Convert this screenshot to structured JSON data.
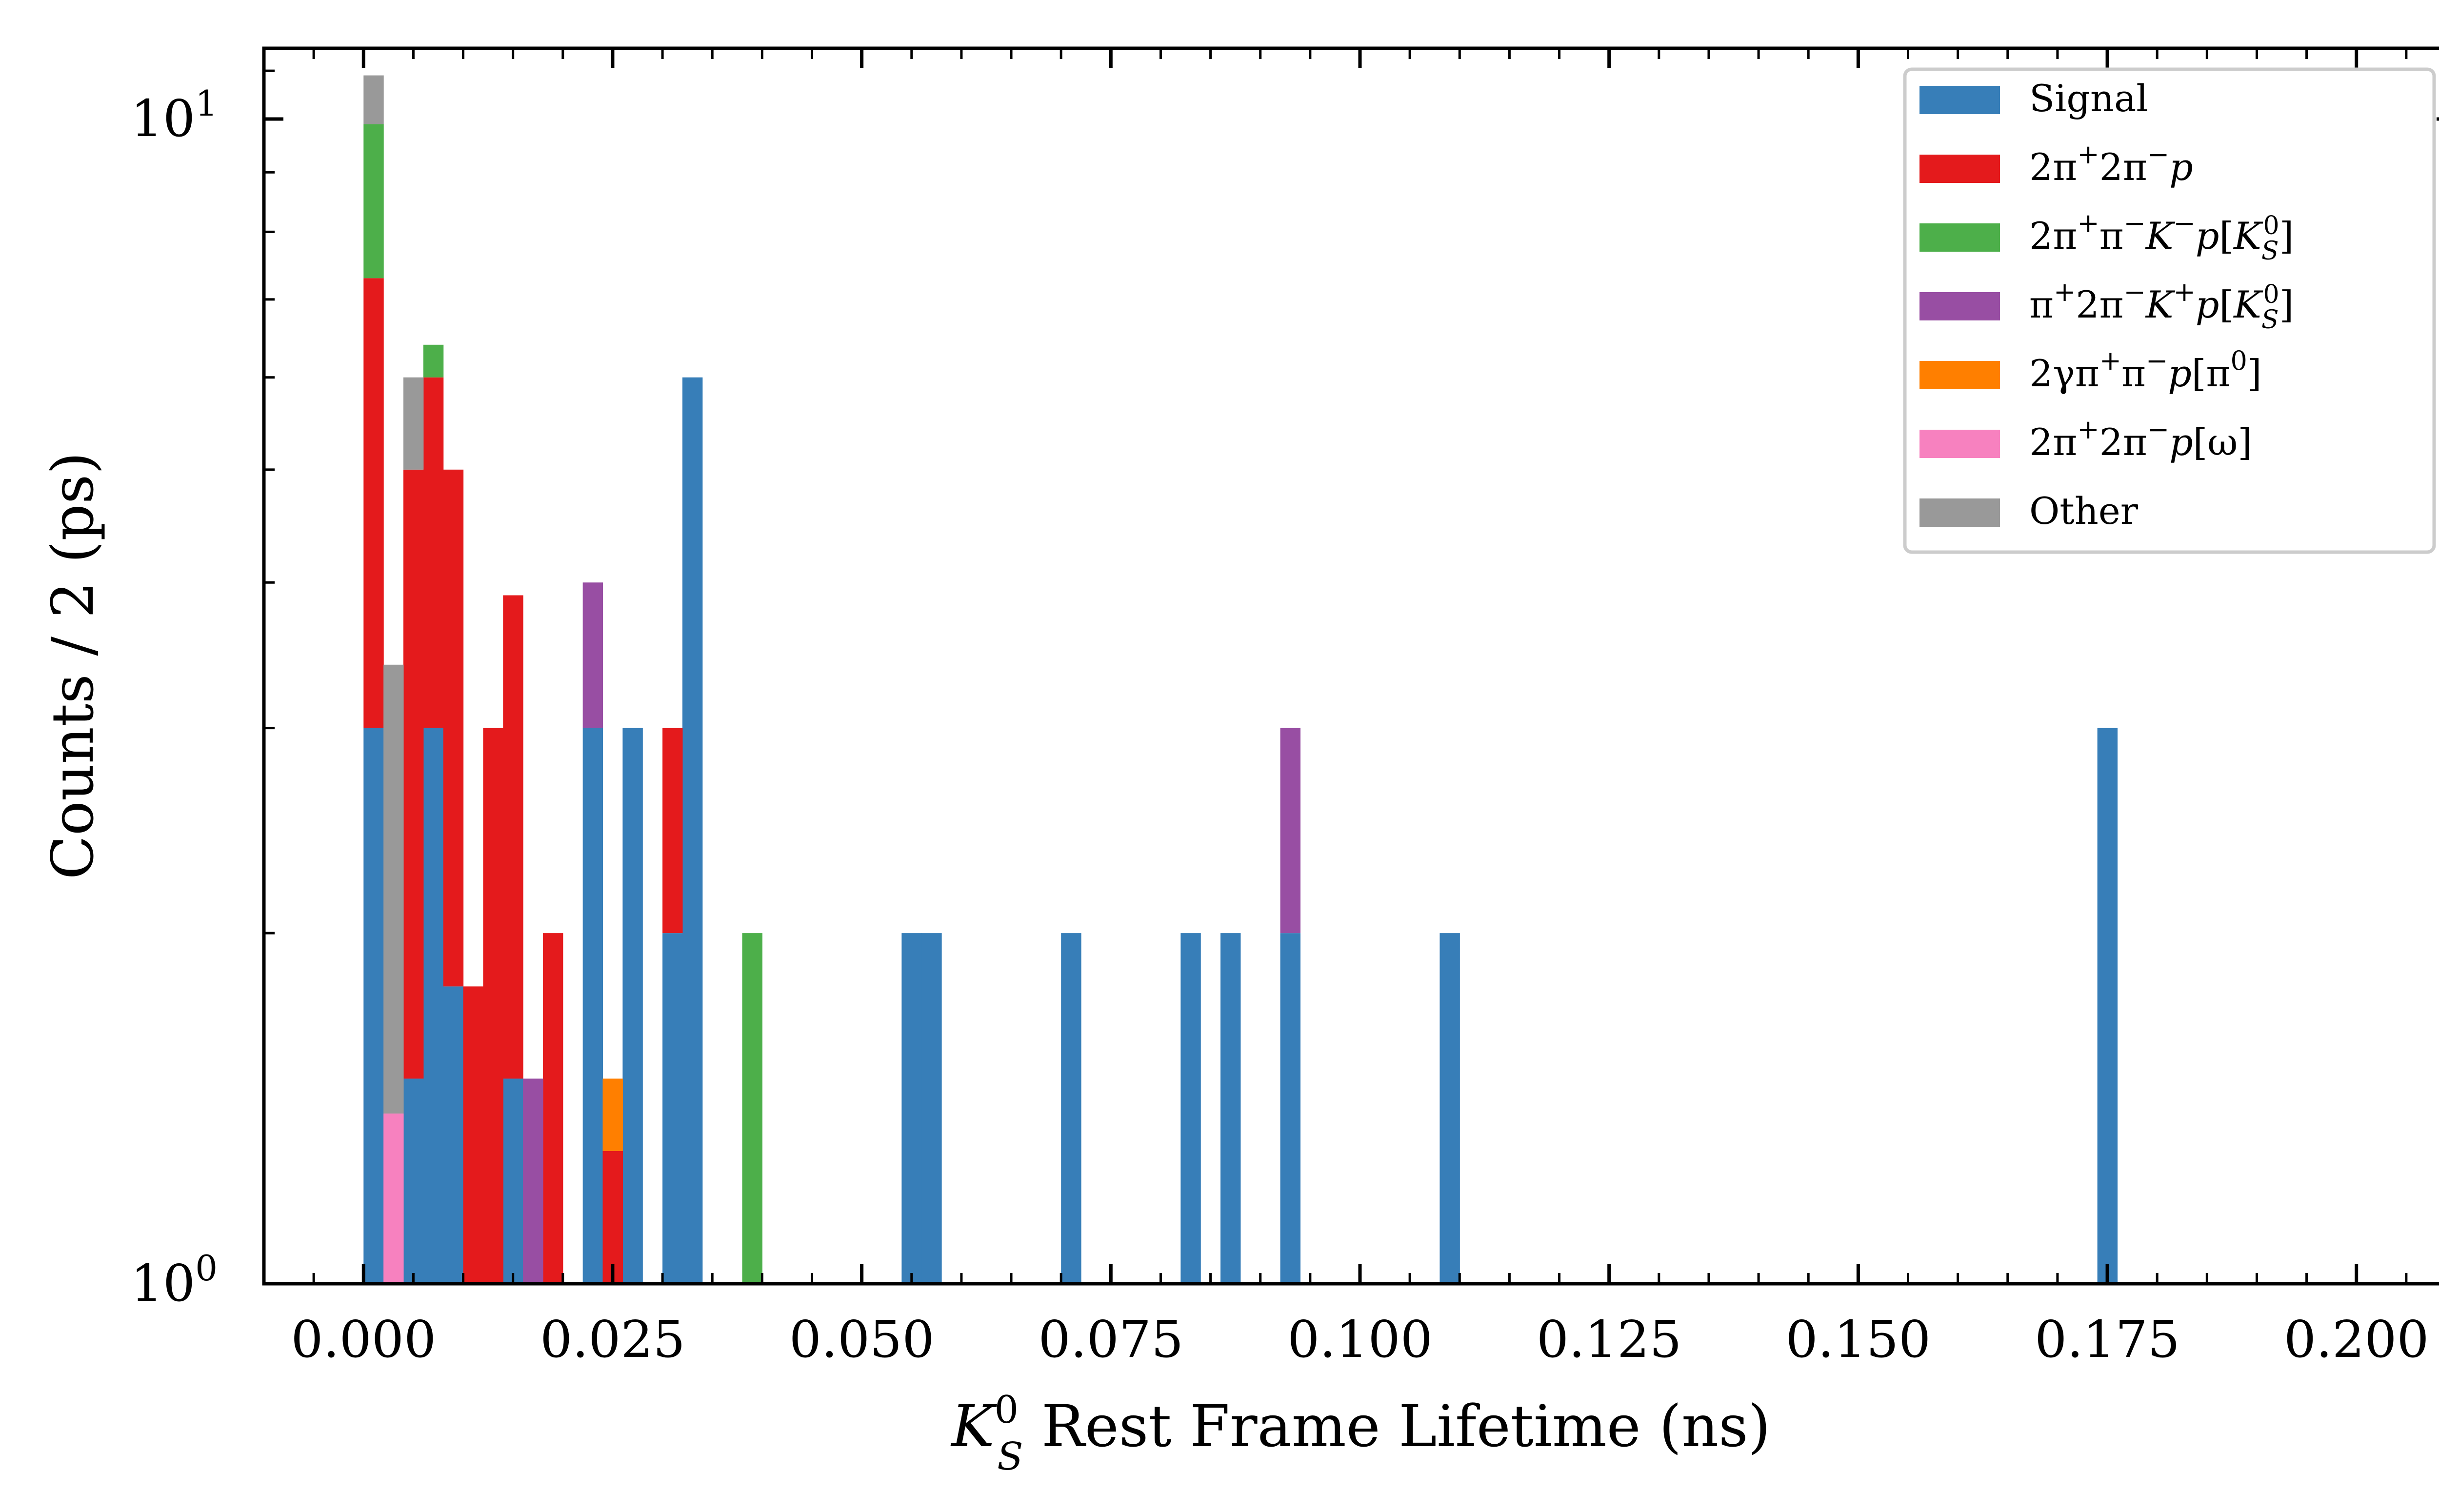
{
  "chart_data": {
    "type": "bar",
    "stacked": true,
    "histogram": true,
    "xlabel_symbol": "K",
    "xlabel_sub": "S",
    "xlabel_sup": "0",
    "xlabel_rest": " Rest Frame Lifetime (ns)",
    "ylabel": "Counts / 2 (ps)",
    "xlim": [
      -0.01,
      0.21
    ],
    "ylim": [
      1,
      11.5
    ],
    "yscale": "log",
    "bin_width": 0.002,
    "x_ticks": [
      0.0,
      0.025,
      0.05,
      0.075,
      0.1,
      0.125,
      0.15,
      0.175,
      0.2
    ],
    "x_tick_labels": [
      "0.000",
      "0.025",
      "0.050",
      "0.075",
      "0.100",
      "0.125",
      "0.150",
      "0.175",
      "0.200"
    ],
    "y_ticks": [
      {
        "value": 1,
        "base": "10",
        "exp": "0"
      },
      {
        "value": 10,
        "base": "10",
        "exp": "1"
      }
    ],
    "grid": false,
    "legend_position": "top-right",
    "series": [
      {
        "name": "Signal",
        "color": "#377eb8",
        "bins": [
          [
            0.0,
            3
          ],
          [
            0.004,
            1.5
          ],
          [
            0.006,
            3
          ],
          [
            0.008,
            1.8
          ],
          [
            0.014,
            1.5
          ],
          [
            0.022,
            3
          ],
          [
            0.026,
            3
          ],
          [
            0.03,
            2
          ],
          [
            0.032,
            6
          ],
          [
            0.054,
            2
          ],
          [
            0.056,
            2
          ],
          [
            0.07,
            2
          ],
          [
            0.082,
            2
          ],
          [
            0.086,
            2
          ],
          [
            0.092,
            2
          ],
          [
            0.108,
            2
          ],
          [
            0.174,
            3
          ]
        ]
      },
      {
        "name": "2π⁺2π⁻p",
        "color": "#e41a1c",
        "bins": [
          [
            0.0,
            4.3
          ],
          [
            0.004,
            3.5
          ],
          [
            0.006,
            3
          ],
          [
            0.008,
            3.2
          ],
          [
            0.01,
            1.8
          ],
          [
            0.012,
            3
          ],
          [
            0.014,
            2.4
          ],
          [
            0.018,
            2
          ],
          [
            0.024,
            1.3
          ],
          [
            0.03,
            1
          ]
        ]
      },
      {
        "name": "2π⁺π⁻K⁻p[K⁰S]",
        "color": "#4daf4a",
        "bins": [
          [
            0.0,
            2.6
          ],
          [
            0.006,
            0.4
          ],
          [
            0.038,
            2
          ]
        ]
      },
      {
        "name": "π⁺2π⁻K⁺p[K⁰S]",
        "color": "#984ea3",
        "bins": [
          [
            0.016,
            1.5
          ],
          [
            0.022,
            1
          ],
          [
            0.092,
            1
          ]
        ]
      },
      {
        "name": "2γπ⁺π⁻p[π⁰]",
        "color": "#ff7f00",
        "bins": [
          [
            0.024,
            0.2
          ]
        ]
      },
      {
        "name": "2π⁺2π⁻p[ω]",
        "color": "#f781bf",
        "bins": [
          [
            0.002,
            1.4
          ]
        ]
      },
      {
        "name": "Other",
        "color": "#999999",
        "bins": [
          [
            0.0,
            1.0
          ],
          [
            0.002,
            2
          ],
          [
            0.004,
            1
          ]
        ]
      }
    ],
    "legend": [
      {
        "parts": [
          [
            "t",
            "Signal"
          ]
        ]
      },
      {
        "parts": [
          [
            "t",
            "2π"
          ],
          [
            "sup",
            "+"
          ],
          [
            "t",
            "2π"
          ],
          [
            "sup",
            "−"
          ],
          [
            "it",
            "p"
          ]
        ]
      },
      {
        "parts": [
          [
            "t",
            "2π"
          ],
          [
            "sup",
            "+"
          ],
          [
            "t",
            "π"
          ],
          [
            "sup",
            "−"
          ],
          [
            "it",
            "K"
          ],
          [
            "sup",
            "−"
          ],
          [
            "it",
            "p"
          ],
          [
            "t",
            "["
          ],
          [
            "it",
            "K"
          ],
          [
            "subsup",
            "S",
            "0"
          ],
          [
            "t",
            "]"
          ]
        ]
      },
      {
        "parts": [
          [
            "t",
            "π"
          ],
          [
            "sup",
            "+"
          ],
          [
            "t",
            "2π"
          ],
          [
            "sup",
            "−"
          ],
          [
            "it",
            "K"
          ],
          [
            "sup",
            "+"
          ],
          [
            "it",
            "p"
          ],
          [
            "t",
            "["
          ],
          [
            "it",
            "K"
          ],
          [
            "subsup",
            "S",
            "0"
          ],
          [
            "t",
            "]"
          ]
        ]
      },
      {
        "parts": [
          [
            "t",
            "2γπ"
          ],
          [
            "sup",
            "+"
          ],
          [
            "t",
            "π"
          ],
          [
            "sup",
            "−"
          ],
          [
            "it",
            "p"
          ],
          [
            "t",
            "[π"
          ],
          [
            "sup",
            "0"
          ],
          [
            "t",
            "]"
          ]
        ]
      },
      {
        "parts": [
          [
            "t",
            "2π"
          ],
          [
            "sup",
            "+"
          ],
          [
            "t",
            "2π"
          ],
          [
            "sup",
            "−"
          ],
          [
            "it",
            "p"
          ],
          [
            "t",
            "[ω]"
          ]
        ]
      },
      {
        "parts": [
          [
            "t",
            "Other"
          ]
        ]
      }
    ]
  }
}
